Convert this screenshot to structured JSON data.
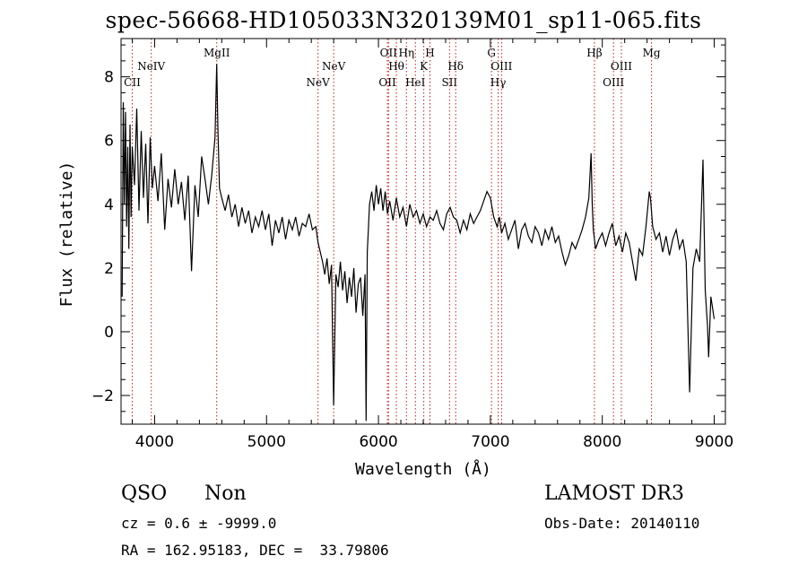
{
  "chart_data": {
    "type": "line",
    "title": "spec-56668-HD105033N320139M01_sp11-065.fits",
    "xlabel": "Wavelength (Å)",
    "ylabel": "Flux (relative)",
    "xlim": [
      3700,
      9100
    ],
    "ylim": [
      -2.9,
      9.2
    ],
    "xticks": [
      4000,
      5000,
      6000,
      7000,
      8000,
      9000
    ],
    "yticks": [
      -2,
      0,
      2,
      4,
      6,
      8
    ],
    "grid": false,
    "series": [
      {
        "x": [
          3710,
          3720,
          3730,
          3740,
          3750,
          3760,
          3770,
          3780,
          3790,
          3800,
          3820,
          3840,
          3860,
          3880,
          3900,
          3920,
          3940,
          3960,
          3980,
          4000,
          4030,
          4060,
          4090,
          4120,
          4150,
          4180,
          4210,
          4240,
          4270,
          4300,
          4330,
          4360,
          4390,
          4420,
          4450,
          4480,
          4510,
          4540,
          4555,
          4565,
          4580,
          4600,
          4630,
          4660,
          4690,
          4720,
          4750,
          4780,
          4810,
          4840,
          4870,
          4900,
          4930,
          4960,
          4990,
          5020,
          5050,
          5080,
          5110,
          5140,
          5170,
          5200,
          5230,
          5260,
          5290,
          5320,
          5350,
          5380,
          5410,
          5440,
          5460,
          5480,
          5500,
          5520,
          5540,
          5560,
          5580,
          5600,
          5620,
          5640,
          5660,
          5680,
          5700,
          5720,
          5740,
          5760,
          5780,
          5800,
          5820,
          5840,
          5860,
          5880,
          5890,
          5900,
          5910,
          5920,
          5940,
          5960,
          5980,
          6000,
          6020,
          6040,
          6060,
          6080,
          6100,
          6130,
          6160,
          6190,
          6220,
          6250,
          6280,
          6310,
          6340,
          6370,
          6400,
          6430,
          6460,
          6490,
          6520,
          6550,
          6580,
          6610,
          6640,
          6670,
          6700,
          6730,
          6760,
          6790,
          6820,
          6850,
          6880,
          6910,
          6940,
          6970,
          7000,
          7030,
          7060,
          7080,
          7100,
          7130,
          7160,
          7190,
          7220,
          7250,
          7280,
          7310,
          7340,
          7370,
          7400,
          7430,
          7460,
          7490,
          7520,
          7550,
          7580,
          7610,
          7640,
          7670,
          7700,
          7730,
          7760,
          7790,
          7820,
          7850,
          7880,
          7900,
          7910,
          7920,
          7940,
          7970,
          8000,
          8030,
          8060,
          8090,
          8120,
          8150,
          8180,
          8210,
          8240,
          8270,
          8300,
          8330,
          8360,
          8390,
          8420,
          8430,
          8450,
          8480,
          8510,
          8540,
          8570,
          8600,
          8630,
          8660,
          8690,
          8720,
          8750,
          8780,
          8810,
          8840,
          8870,
          8900,
          8920,
          8940,
          8950,
          8970,
          9000
        ],
        "y": [
          1.1,
          7.2,
          4.0,
          6.9,
          3.3,
          5.8,
          2.6,
          6.5,
          3.6,
          5.8,
          4.6,
          7.0,
          3.8,
          6.3,
          4.2,
          5.9,
          3.4,
          6.1,
          4.5,
          5.2,
          4.1,
          5.6,
          3.2,
          4.8,
          3.9,
          5.1,
          4.0,
          4.7,
          3.5,
          4.9,
          1.9,
          4.6,
          3.6,
          5.5,
          4.8,
          4.0,
          4.9,
          6.1,
          8.4,
          6.4,
          4.5,
          4.2,
          3.8,
          4.3,
          3.6,
          4.0,
          3.3,
          3.9,
          3.4,
          3.8,
          3.1,
          3.6,
          3.3,
          3.8,
          3.2,
          3.7,
          2.7,
          3.5,
          3.1,
          3.6,
          2.9,
          3.5,
          3.2,
          3.6,
          3.0,
          3.4,
          3.3,
          3.7,
          3.2,
          3.3,
          2.8,
          2.5,
          2.2,
          1.8,
          2.3,
          1.5,
          2.1,
          -2.3,
          1.8,
          1.4,
          2.2,
          1.3,
          1.9,
          0.9,
          1.7,
          1.1,
          2.0,
          0.6,
          1.5,
          1.7,
          0.5,
          1.8,
          -2.8,
          2.5,
          3.2,
          4.0,
          4.4,
          3.8,
          4.6,
          4.0,
          4.5,
          3.8,
          4.4,
          3.7,
          4.1,
          3.5,
          4.2,
          3.6,
          3.9,
          3.3,
          4.0,
          3.6,
          3.8,
          3.4,
          3.7,
          3.3,
          3.6,
          3.5,
          3.8,
          3.4,
          3.2,
          3.7,
          3.9,
          3.6,
          3.5,
          3.1,
          3.5,
          3.2,
          3.7,
          3.4,
          3.6,
          3.8,
          4.1,
          4.4,
          4.2,
          3.6,
          3.3,
          3.6,
          3.1,
          3.4,
          2.9,
          3.2,
          3.5,
          2.6,
          3.2,
          3.4,
          3.0,
          2.8,
          3.3,
          3.1,
          2.7,
          3.2,
          2.9,
          3.3,
          2.8,
          3.0,
          2.5,
          2.1,
          2.4,
          2.8,
          2.6,
          2.9,
          3.2,
          3.6,
          4.2,
          5.6,
          4.0,
          3.2,
          2.6,
          2.9,
          3.1,
          2.7,
          3.1,
          3.4,
          2.7,
          3.0,
          2.5,
          3.1,
          2.8,
          2.2,
          1.6,
          2.6,
          2.4,
          3.3,
          4.4,
          4.2,
          3.3,
          2.9,
          3.1,
          2.5,
          3.0,
          2.4,
          2.9,
          3.2,
          2.6,
          2.9,
          2.2,
          -1.9,
          2.0,
          2.6,
          2.2,
          5.4,
          1.3,
          0.2,
          -0.8,
          1.1,
          0.4
        ]
      }
    ],
    "lines": [
      {
        "label": "CII",
        "x": 3800,
        "row": 3
      },
      {
        "label": "NeIV",
        "x": 3970,
        "row": 2
      },
      {
        "label": "MgII",
        "x": 4555,
        "row": 1
      },
      {
        "label": "NeV",
        "x": 5460,
        "row": 3
      },
      {
        "label": "NeV",
        "x": 5600,
        "row": 2
      },
      {
        "label": "OII",
        "x": 6080,
        "row": 3
      },
      {
        "label": "OII",
        "x": 6090,
        "row": 1
      },
      {
        "label": "Hθ",
        "x": 6160,
        "row": 2
      },
      {
        "label": "Hη",
        "x": 6250,
        "row": 1
      },
      {
        "label": "HeI",
        "x": 6330,
        "row": 3
      },
      {
        "label": "K",
        "x": 6405,
        "row": 2
      },
      {
        "label": "H",
        "x": 6460,
        "row": 1
      },
      {
        "label": "SII",
        "x": 6635,
        "row": 3
      },
      {
        "label": "Hδ",
        "x": 6690,
        "row": 2
      },
      {
        "label": "G",
        "x": 7010,
        "row": 1
      },
      {
        "label": "Hγ",
        "x": 7070,
        "row": 3
      },
      {
        "label": "OIII",
        "x": 7100,
        "row": 2
      },
      {
        "label": "Hβ",
        "x": 7930,
        "row": 1
      },
      {
        "label": "OIII",
        "x": 8100,
        "row": 3
      },
      {
        "label": "OIII",
        "x": 8170,
        "row": 2
      },
      {
        "label": "Mg",
        "x": 8440,
        "row": 1
      }
    ]
  },
  "info": {
    "class": "QSO",
    "subclass": "Non",
    "survey": "LAMOST DR3",
    "cz": "cz = 0.6 ± -9999.0",
    "obs_date": "Obs-Date: 20140110",
    "coords": "RA = 162.95183, DEC =  33.79806"
  }
}
